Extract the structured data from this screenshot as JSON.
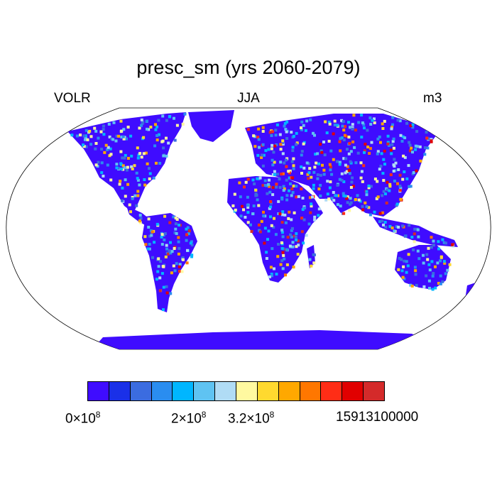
{
  "header": {
    "title": "presc_sm (yrs 2060-2079)",
    "left": "VOLR",
    "center": "JJA",
    "right": "m3"
  },
  "colorbar": {
    "colors": [
      "#3f0cff",
      "#1a30e8",
      "#3b6ce0",
      "#2a8df0",
      "#00b6ff",
      "#5fc3f2",
      "#b0dcf5",
      "#fff9a0",
      "#ffd92f",
      "#ffa800",
      "#ff7700",
      "#ff2d16",
      "#e10000",
      "#d42a2a"
    ],
    "labels": [
      {
        "mantissa": "0",
        "times": "×10",
        "exp": "8"
      },
      {
        "mantissa": "2",
        "times": "×10",
        "exp": "8"
      },
      {
        "mantissa": "3.2",
        "times": "×10",
        "exp": "8"
      },
      {
        "value": "15913100000"
      }
    ]
  },
  "map": {
    "projection": "Robinson",
    "land_base_color": "#3f0cff"
  }
}
